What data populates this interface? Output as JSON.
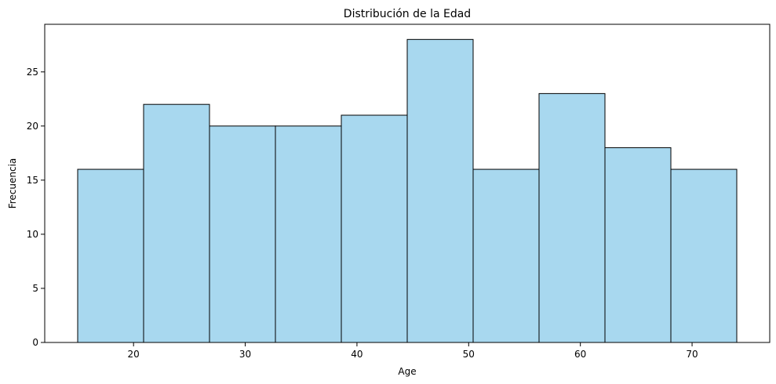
{
  "chart_data": {
    "type": "bar",
    "title": "Distribución de la Edad",
    "xlabel": "Age",
    "ylabel": "Frecuencia",
    "bin_edges": [
      15.0,
      20.9,
      26.8,
      32.7,
      38.6,
      44.5,
      50.4,
      56.3,
      62.2,
      68.1,
      74.0
    ],
    "values": [
      16,
      22,
      20,
      20,
      21,
      28,
      16,
      23,
      18,
      16
    ],
    "xlim": [
      12.05,
      76.95
    ],
    "ylim": [
      0,
      29.4
    ],
    "x_ticks": [
      20,
      30,
      40,
      50,
      60,
      70
    ],
    "y_ticks": [
      0,
      5,
      10,
      15,
      20,
      25
    ],
    "bar_color": "#a8d8ef",
    "edge_color": "#000000",
    "grid": false
  }
}
